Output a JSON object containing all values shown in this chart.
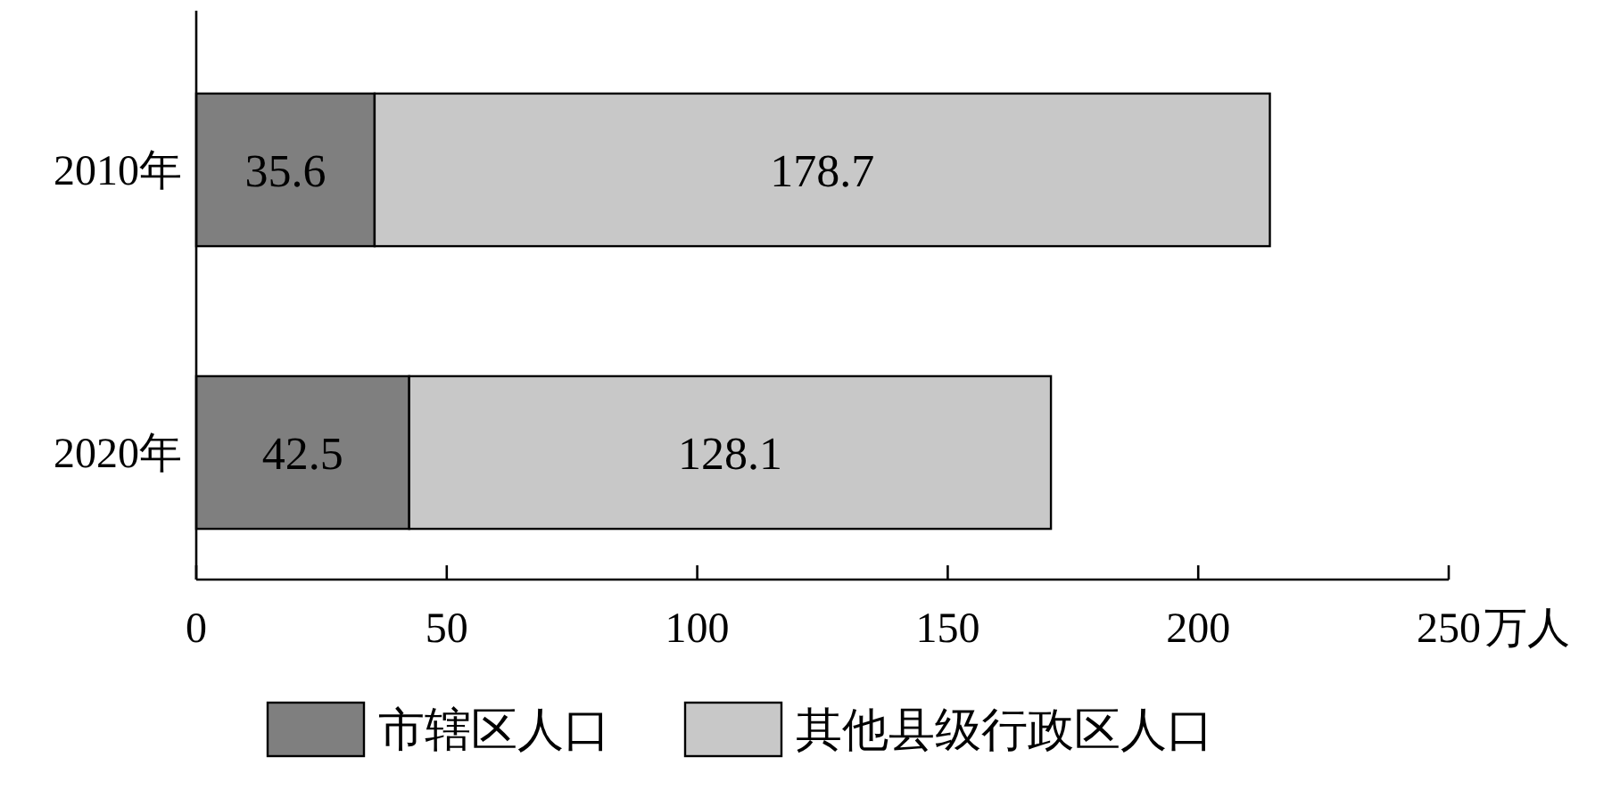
{
  "chart_data": {
    "type": "bar",
    "orientation": "horizontal",
    "stacked": true,
    "categories": [
      "2010年",
      "2020年"
    ],
    "xlabel": "万人",
    "xlim": [
      0,
      250
    ],
    "xticks": [
      0,
      50,
      100,
      150,
      200,
      250
    ],
    "data_labels": true,
    "legend": "bottom",
    "series": [
      {
        "name": "市辖区人口",
        "color": "#7f7f7f",
        "values": [
          35.6,
          42.5
        ]
      },
      {
        "name": "其他县级行政区人口",
        "color": "#c8c8c8",
        "values": [
          178.7,
          128.1
        ]
      }
    ]
  }
}
